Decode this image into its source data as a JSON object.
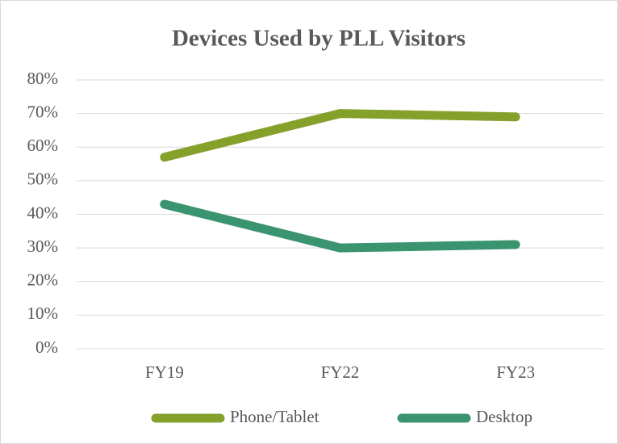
{
  "chart_data": {
    "type": "line",
    "title": "Devices Used by PLL Visitors",
    "categories": [
      "FY19",
      "FY22",
      "FY23"
    ],
    "series": [
      {
        "name": "Phone/Tablet",
        "color": "#86a02c",
        "values": [
          57,
          70,
          69
        ]
      },
      {
        "name": "Desktop",
        "color": "#3a9470",
        "values": [
          43,
          30,
          31
        ]
      }
    ],
    "ylim": [
      0,
      80
    ],
    "yticks": [
      {
        "value": 0,
        "label": "0%"
      },
      {
        "value": 10,
        "label": "10%"
      },
      {
        "value": 20,
        "label": "20%"
      },
      {
        "value": 30,
        "label": "30%"
      },
      {
        "value": 40,
        "label": "40%"
      },
      {
        "value": 50,
        "label": "50%"
      },
      {
        "value": 60,
        "label": "60%"
      },
      {
        "value": 70,
        "label": "70%"
      },
      {
        "value": 80,
        "label": "80%"
      }
    ],
    "grid": true,
    "legend": "bottom"
  }
}
